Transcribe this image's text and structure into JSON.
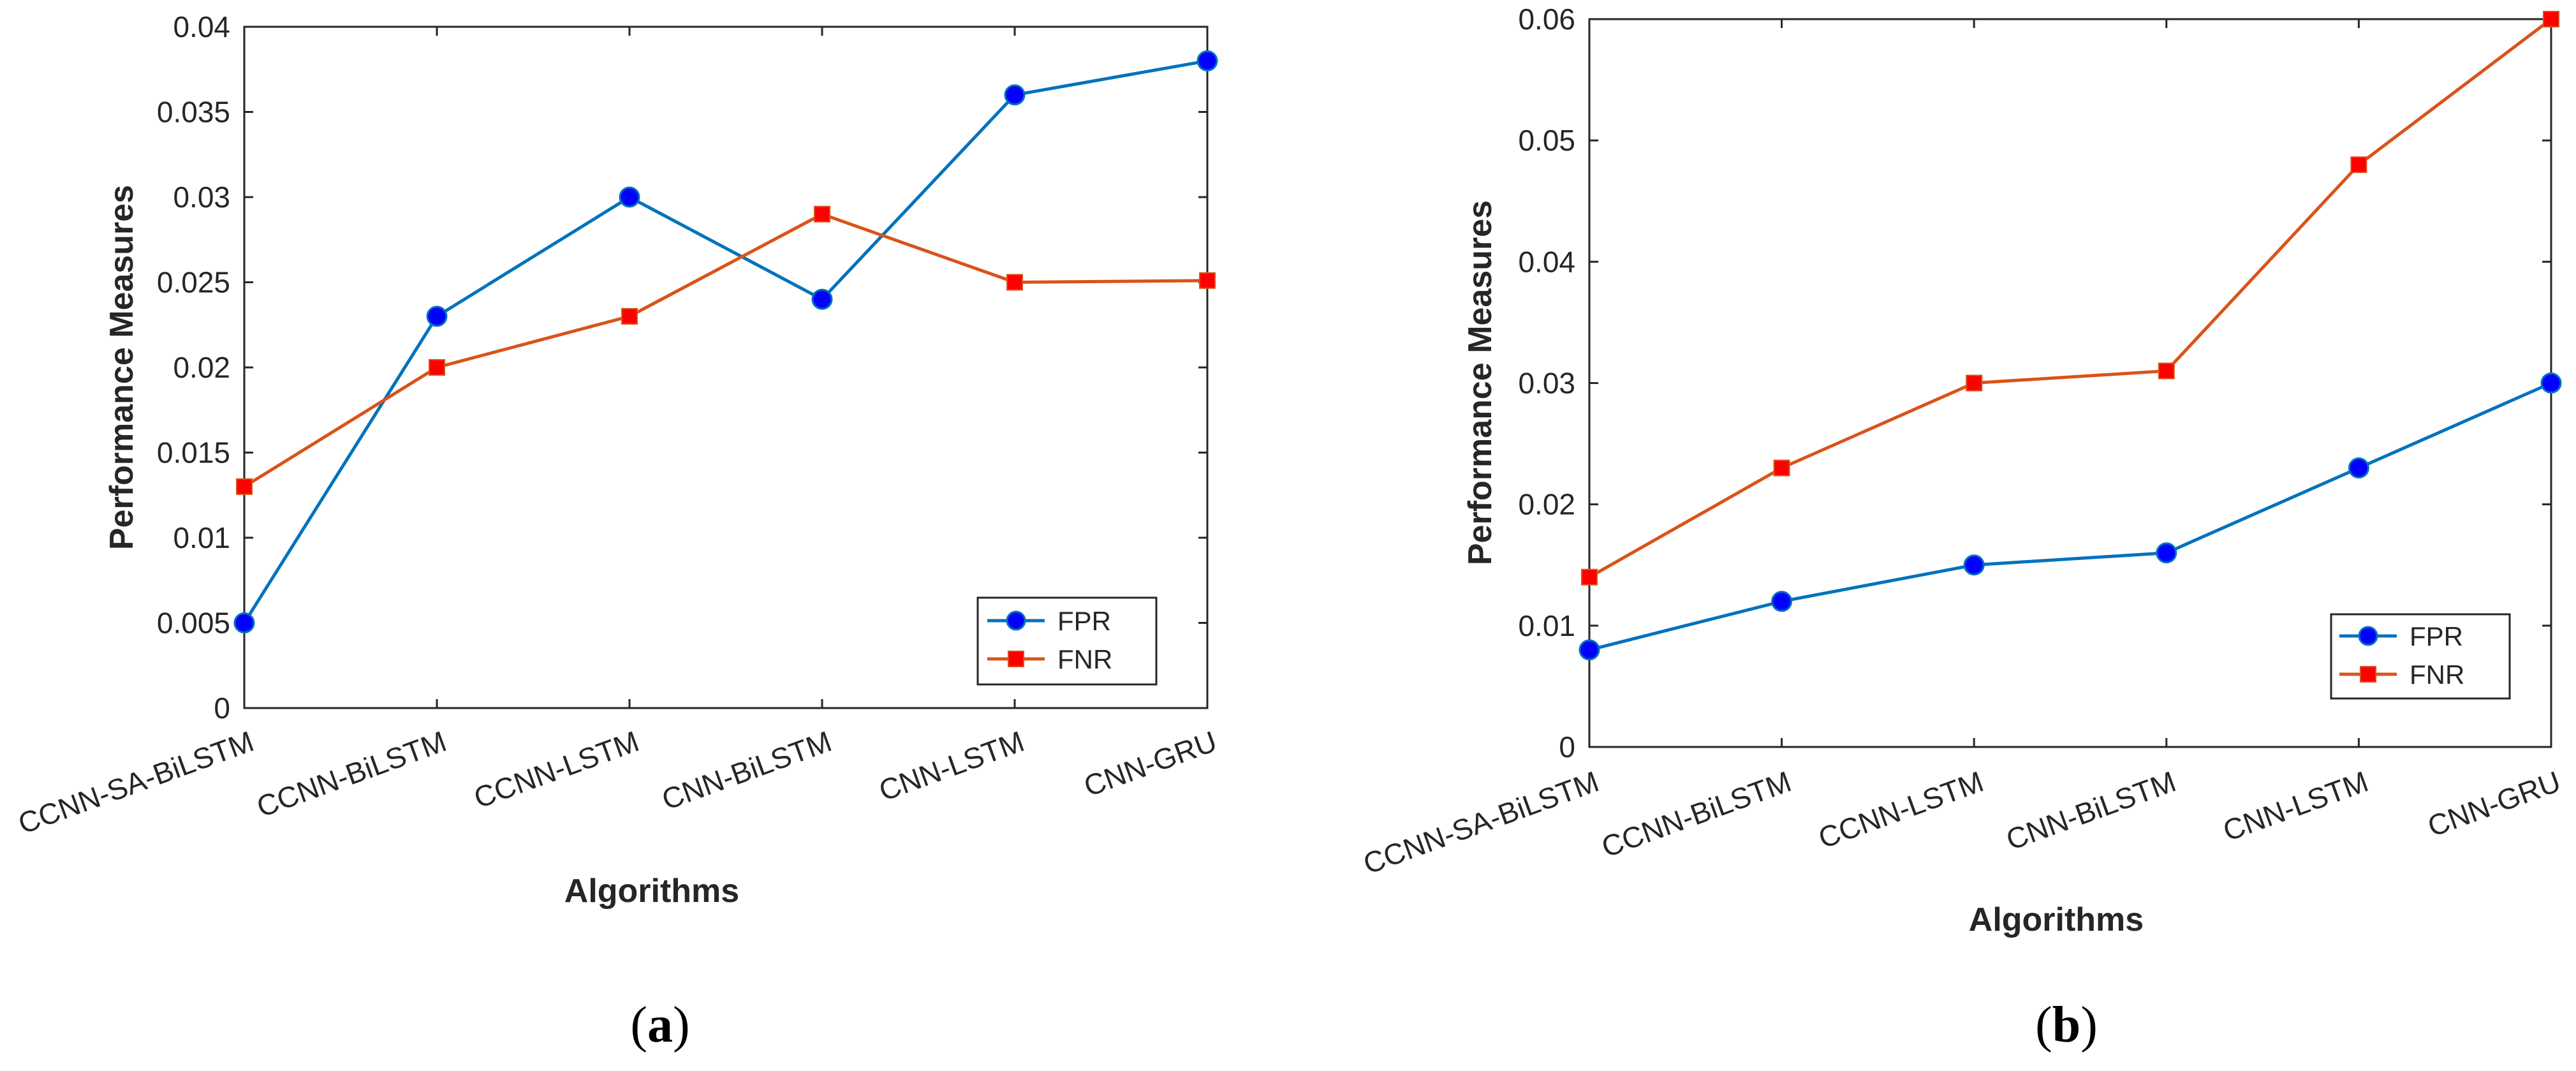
{
  "colors": {
    "fpr": "#0072BD",
    "fpr_marker": "#0000FF",
    "fnr": "#D95319",
    "fnr_marker": "#FF0000"
  },
  "chart_data": [
    {
      "type": "line",
      "caption": "a",
      "categories": [
        "CCNN-SA-BiLSTM",
        "CCNN-BiLSTM",
        "CCNN-LSTM",
        "CNN-BiLSTM",
        "CNN-LSTM",
        "CNN-GRU"
      ],
      "series": [
        {
          "name": "FPR",
          "marker": "circle",
          "values": [
            0.005,
            0.023,
            0.03,
            0.024,
            0.036,
            0.038
          ]
        },
        {
          "name": "FNR",
          "marker": "square",
          "values": [
            0.013,
            0.02,
            0.023,
            0.029,
            0.025,
            0.0251
          ]
        }
      ],
      "xlabel": "Algorithms",
      "ylabel": "Performance Measures",
      "ylim": [
        0,
        0.04
      ],
      "yticks": [
        "0",
        "0.005",
        "0.01",
        "0.015",
        "0.02",
        "0.025",
        "0.03",
        "0.035",
        "0.04"
      ],
      "legend": "bottom-right"
    },
    {
      "type": "line",
      "caption": "b",
      "categories": [
        "CCNN-SA-BiLSTM",
        "CCNN-BiLSTM",
        "CCNN-LSTM",
        "CNN-BiLSTM",
        "CNN-LSTM",
        "CNN-GRU"
      ],
      "series": [
        {
          "name": "FPR",
          "marker": "circle",
          "values": [
            0.008,
            0.012,
            0.015,
            0.016,
            0.023,
            0.03
          ]
        },
        {
          "name": "FNR",
          "marker": "square",
          "values": [
            0.014,
            0.023,
            0.03,
            0.031,
            0.048,
            0.06
          ]
        }
      ],
      "xlabel": "Algorithms",
      "ylabel": "Performance Measures",
      "ylim": [
        0,
        0.06
      ],
      "yticks": [
        "0",
        "0.01",
        "0.02",
        "0.03",
        "0.04",
        "0.05",
        "0.06"
      ],
      "legend": "bottom-right"
    }
  ]
}
